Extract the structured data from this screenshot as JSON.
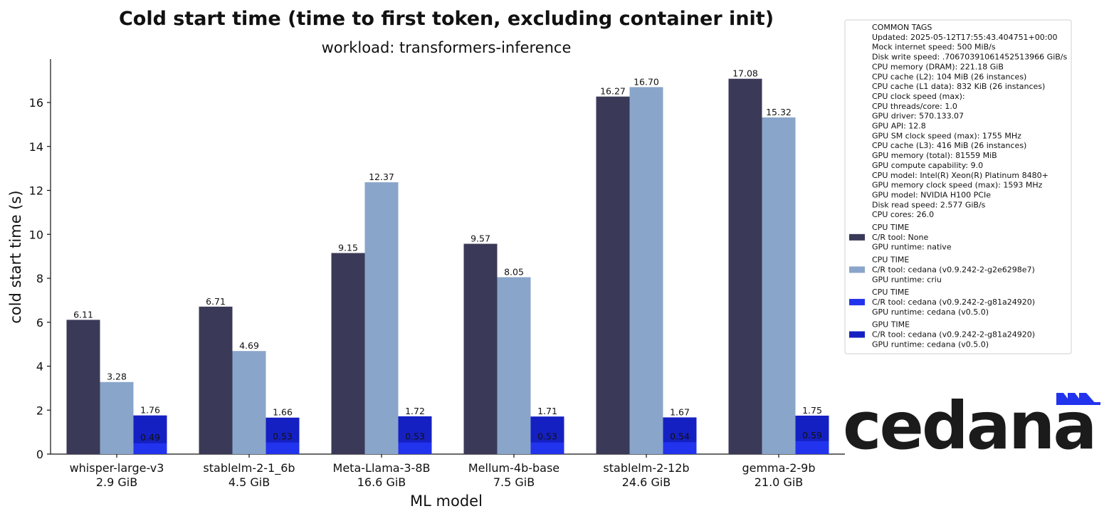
{
  "chart_data": {
    "type": "bar",
    "title": "Cold start time (time to first token, excluding container init)",
    "subtitle": "workload: transformers-inference",
    "xlabel": "ML model",
    "ylabel": "cold start time (s)",
    "ylim": [
      0,
      18
    ],
    "yticks": [
      0,
      2,
      4,
      6,
      8,
      10,
      12,
      14,
      16
    ],
    "categories": [
      "whisper-large-v3",
      "stablelm-2-1_6b",
      "Meta-Llama-3-8B",
      "Mellum-4b-base",
      "stablelm-2-12b",
      "gemma-2-9b"
    ],
    "category_sizes": [
      "2.9 GiB",
      "4.5 GiB",
      "16.6 GiB",
      "7.5 GiB",
      "24.6 GiB",
      "21.0 GiB"
    ],
    "series": [
      {
        "name": "CPU TIME — C/R tool: None — GPU runtime: native",
        "color": "#3a3a58",
        "values": [
          6.11,
          6.71,
          9.15,
          9.57,
          16.27,
          17.08
        ],
        "labels": [
          "6.11",
          "6.71",
          "9.15",
          "9.57",
          "16.27",
          "17.08"
        ]
      },
      {
        "name": "CPU TIME — C/R tool: cedana (v0.9.242-2-g2e6298e7) — GPU runtime: criu",
        "color": "#8aa5ca",
        "values": [
          3.28,
          4.69,
          12.37,
          8.05,
          16.7,
          15.32
        ],
        "labels": [
          "3.28",
          "4.69",
          "12.37",
          "8.05",
          "16.70",
          "15.32"
        ]
      },
      {
        "name": "CPU TIME — C/R tool: cedana (v0.9.242-2-g81a24920) — GPU runtime: cedana (v0.5.0)",
        "color": "#2233ee",
        "values": [
          0.49,
          0.53,
          0.53,
          0.53,
          0.54,
          0.59
        ],
        "labels": [
          "0.49",
          "0.53",
          "0.53",
          "0.53",
          "0.54",
          "0.59"
        ]
      },
      {
        "name": "GPU TIME — C/R tool: cedana (v0.9.242-2-g81a24920) — GPU runtime: cedana (v0.5.0)",
        "color": "#1520c2",
        "values": [
          1.76,
          1.66,
          1.72,
          1.71,
          1.67,
          1.75
        ],
        "labels": [
          "1.76",
          "1.66",
          "1.72",
          "1.71",
          "1.67",
          "1.75"
        ]
      }
    ],
    "legend": {
      "placement": "top-right, outside plot",
      "common_tags": [
        "COMMON TAGS",
        "Updated: 2025-05-12T17:55:43.404751+00:00",
        "Mock internet speed: 500 MiB/s",
        "Disk write speed: .70670391061452513966 GiB/s",
        "CPU memory (DRAM): 221.18 GiB",
        "CPU cache (L2): 104 MiB (26 instances)",
        "CPU cache (L1 data): 832 KiB (26 instances)",
        "CPU clock speed (max):",
        "CPU threads/core: 1.0",
        "GPU driver: 570.133.07",
        "GPU API: 12.8",
        "GPU SM clock speed (max): 1755 MHz",
        "CPU cache (L3): 416 MiB (26 instances)",
        "GPU memory (total): 81559 MiB",
        "GPU compute capability: 9.0",
        "CPU model: Intel(R) Xeon(R) Platinum 8480+",
        "GPU memory clock speed (max): 1593 MHz",
        "GPU model: NVIDIA H100 PCIe",
        "Disk read speed: 2.577 GiB/s",
        "CPU cores: 26.0"
      ],
      "entries": [
        {
          "lines": [
            "CPU TIME",
            "C/R tool: None",
            "GPU runtime: native"
          ],
          "color": "#3a3a58"
        },
        {
          "lines": [
            "CPU TIME",
            "C/R tool: cedana (v0.9.242-2-g2e6298e7)",
            "GPU runtime: criu"
          ],
          "color": "#8aa5ca"
        },
        {
          "lines": [
            "CPU TIME",
            "C/R tool: cedana (v0.9.242-2-g81a24920)",
            "GPU runtime: cedana (v0.5.0)"
          ],
          "color": "#2233ee"
        },
        {
          "lines": [
            "GPU TIME",
            "C/R tool: cedana (v0.9.242-2-g81a24920)",
            "GPU runtime: cedana (v0.5.0)"
          ],
          "color": "#1520c2"
        }
      ]
    }
  },
  "logo": {
    "text": "cedana",
    "accent_color": "#2233ee"
  }
}
